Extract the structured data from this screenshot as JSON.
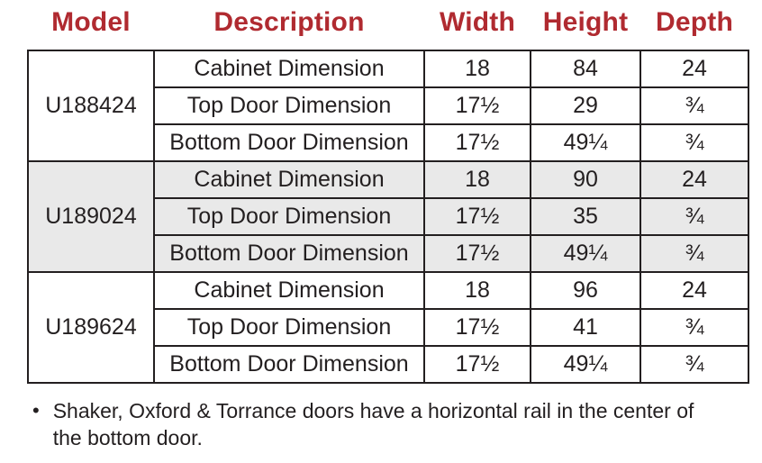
{
  "colors": {
    "accent": "#B02A30",
    "ink": "#231F20",
    "shade": "#E9E9E9"
  },
  "table": {
    "headers": [
      "Model",
      "Description",
      "Width",
      "Height",
      "Depth"
    ],
    "groups": [
      {
        "model": "U188424",
        "shaded": false,
        "rows": [
          {
            "description": "Cabinet Dimension",
            "width": "18",
            "height": "84",
            "depth": "24"
          },
          {
            "description": "Top Door Dimension",
            "width": "17½",
            "height": "29",
            "depth": "¾"
          },
          {
            "description": "Bottom Door Dimension",
            "width": "17½",
            "height": "49¼",
            "depth": "¾"
          }
        ]
      },
      {
        "model": "U189024",
        "shaded": true,
        "rows": [
          {
            "description": "Cabinet Dimension",
            "width": "18",
            "height": "90",
            "depth": "24"
          },
          {
            "description": "Top Door Dimension",
            "width": "17½",
            "height": "35",
            "depth": "¾"
          },
          {
            "description": "Bottom Door Dimension",
            "width": "17½",
            "height": "49¼",
            "depth": "¾"
          }
        ]
      },
      {
        "model": "U189624",
        "shaded": false,
        "rows": [
          {
            "description": "Cabinet Dimension",
            "width": "18",
            "height": "96",
            "depth": "24"
          },
          {
            "description": "Top Door Dimension",
            "width": "17½",
            "height": "41",
            "depth": "¾"
          },
          {
            "description": "Bottom Door Dimension",
            "width": "17½",
            "height": "49¼",
            "depth": "¾"
          }
        ]
      }
    ]
  },
  "footnote": {
    "bullet": "•",
    "text": "Shaker, Oxford & Torrance doors have a horizontal rail in the center of the bottom door."
  }
}
